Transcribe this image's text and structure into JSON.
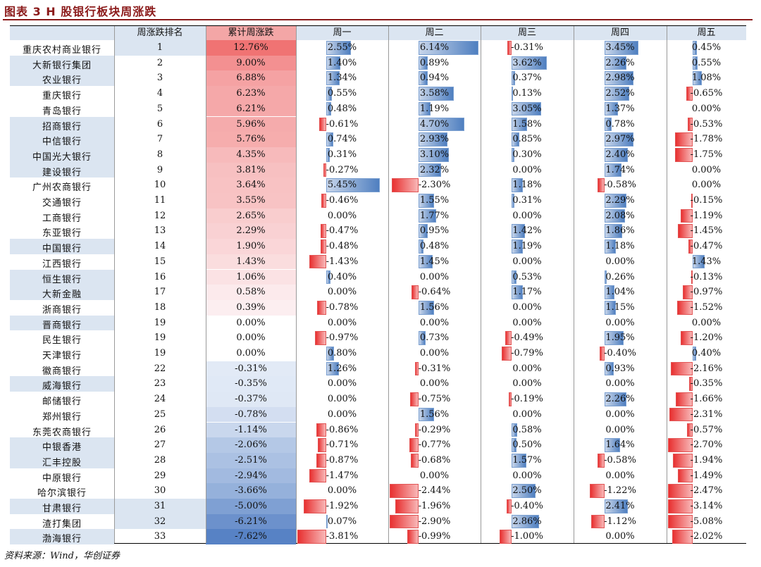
{
  "figure_title": "图表 3   H 股银行板块周涨跌",
  "source": "资料来源：Wind，华创证券",
  "chart_data": {
    "type": "table",
    "columns": [
      "",
      "周涨跌排名",
      "累计周涨跌",
      "周一",
      "周二",
      "周三",
      "周四",
      "周五"
    ],
    "rows": [
      {
        "name": "重庆农村商业银行",
        "rank": "1",
        "cum": "12.76%",
        "d": [
          "2.55%",
          "6.14%",
          "-0.31%",
          "3.45%",
          "0.45%"
        ]
      },
      {
        "name": "大新银行集团",
        "rank": "2",
        "cum": "9.00%",
        "d": [
          "1.40%",
          "0.89%",
          "3.62%",
          "2.26%",
          "0.55%"
        ]
      },
      {
        "name": "农业银行",
        "rank": "3",
        "cum": "6.88%",
        "d": [
          "1.34%",
          "0.94%",
          "0.37%",
          "2.98%",
          "1.08%"
        ]
      },
      {
        "name": "重庆银行",
        "rank": "4",
        "cum": "6.23%",
        "d": [
          "0.55%",
          "3.58%",
          "0.13%",
          "2.52%",
          "-0.65%"
        ]
      },
      {
        "name": "青岛银行",
        "rank": "5",
        "cum": "6.21%",
        "d": [
          "0.48%",
          "1.19%",
          "3.05%",
          "1.37%",
          "0.00%"
        ]
      },
      {
        "name": "招商银行",
        "rank": "6",
        "cum": "5.96%",
        "d": [
          "-0.61%",
          "4.70%",
          "1.58%",
          "0.78%",
          "-0.53%"
        ]
      },
      {
        "name": "中信银行",
        "rank": "7",
        "cum": "5.76%",
        "d": [
          "0.74%",
          "2.93%",
          "0.85%",
          "2.97%",
          "-1.78%"
        ]
      },
      {
        "name": "中国光大银行",
        "rank": "8",
        "cum": "4.35%",
        "d": [
          "0.31%",
          "3.10%",
          "0.30%",
          "2.40%",
          "-1.75%"
        ]
      },
      {
        "name": "建设银行",
        "rank": "9",
        "cum": "3.81%",
        "d": [
          "-0.27%",
          "2.32%",
          "0.00%",
          "1.74%",
          "0.00%"
        ]
      },
      {
        "name": "广州农商银行",
        "rank": "10",
        "cum": "3.64%",
        "d": [
          "5.45%",
          "-2.30%",
          "1.18%",
          "-0.58%",
          "0.00%"
        ]
      },
      {
        "name": "交通银行",
        "rank": "11",
        "cum": "3.55%",
        "d": [
          "-0.46%",
          "1.55%",
          "0.31%",
          "2.29%",
          "-0.15%"
        ]
      },
      {
        "name": "工商银行",
        "rank": "12",
        "cum": "2.65%",
        "d": [
          "0.00%",
          "1.77%",
          "0.00%",
          "2.08%",
          "-1.19%"
        ]
      },
      {
        "name": "东亚银行",
        "rank": "13",
        "cum": "2.29%",
        "d": [
          "-0.47%",
          "0.95%",
          "1.42%",
          "1.86%",
          "-1.45%"
        ]
      },
      {
        "name": "中国银行",
        "rank": "14",
        "cum": "1.90%",
        "d": [
          "-0.48%",
          "0.48%",
          "1.19%",
          "1.18%",
          "-0.47%"
        ]
      },
      {
        "name": "江西银行",
        "rank": "15",
        "cum": "1.43%",
        "d": [
          "-1.43%",
          "1.45%",
          "0.00%",
          "0.00%",
          "1.43%"
        ]
      },
      {
        "name": "恒生银行",
        "rank": "16",
        "cum": "1.06%",
        "d": [
          "0.40%",
          "0.00%",
          "0.53%",
          "0.26%",
          "-0.13%"
        ]
      },
      {
        "name": "大新金融",
        "rank": "17",
        "cum": "0.58%",
        "d": [
          "0.00%",
          "-0.64%",
          "1.17%",
          "1.04%",
          "-0.97%"
        ]
      },
      {
        "name": "浙商银行",
        "rank": "18",
        "cum": "0.39%",
        "d": [
          "-0.78%",
          "1.56%",
          "0.00%",
          "1.15%",
          "-1.52%"
        ]
      },
      {
        "name": "晋商银行",
        "rank": "19",
        "cum": "0.00%",
        "d": [
          "0.00%",
          "0.00%",
          "0.00%",
          "0.00%",
          "0.00%"
        ]
      },
      {
        "name": "民生银行",
        "rank": "19",
        "cum": "0.00%",
        "d": [
          "-0.97%",
          "0.73%",
          "-0.49%",
          "1.95%",
          "-1.20%"
        ]
      },
      {
        "name": "天津银行",
        "rank": "19",
        "cum": "0.00%",
        "d": [
          "0.80%",
          "0.00%",
          "-0.79%",
          "-0.40%",
          "0.40%"
        ]
      },
      {
        "name": "徽商银行",
        "rank": "22",
        "cum": "-0.31%",
        "d": [
          "1.26%",
          "-0.31%",
          "0.00%",
          "0.93%",
          "-2.16%"
        ]
      },
      {
        "name": "威海银行",
        "rank": "23",
        "cum": "-0.35%",
        "d": [
          "0.00%",
          "0.00%",
          "0.00%",
          "0.00%",
          "-0.35%"
        ]
      },
      {
        "name": "邮储银行",
        "rank": "24",
        "cum": "-0.37%",
        "d": [
          "0.00%",
          "-0.75%",
          "-0.19%",
          "2.26%",
          "-1.66%"
        ]
      },
      {
        "name": "郑州银行",
        "rank": "25",
        "cum": "-0.78%",
        "d": [
          "0.00%",
          "1.56%",
          "0.00%",
          "0.00%",
          "-2.31%"
        ]
      },
      {
        "name": "东莞农商银行",
        "rank": "26",
        "cum": "-1.14%",
        "d": [
          "-0.86%",
          "-0.29%",
          "0.58%",
          "0.00%",
          "-0.57%"
        ]
      },
      {
        "name": "中银香港",
        "rank": "27",
        "cum": "-2.06%",
        "d": [
          "-0.71%",
          "-0.77%",
          "0.50%",
          "1.64%",
          "-2.70%"
        ]
      },
      {
        "name": "汇丰控股",
        "rank": "28",
        "cum": "-2.51%",
        "d": [
          "-0.87%",
          "-0.68%",
          "1.57%",
          "-0.58%",
          "-1.94%"
        ]
      },
      {
        "name": "中原银行",
        "rank": "29",
        "cum": "-2.94%",
        "d": [
          "-1.47%",
          "0.00%",
          "0.00%",
          "0.00%",
          "-1.49%"
        ]
      },
      {
        "name": "哈尔滨银行",
        "rank": "30",
        "cum": "-3.66%",
        "d": [
          "0.00%",
          "-2.44%",
          "2.50%",
          "-1.22%",
          "-2.47%"
        ]
      },
      {
        "name": "甘肃银行",
        "rank": "31",
        "cum": "-5.00%",
        "d": [
          "-1.92%",
          "-1.96%",
          "-0.40%",
          "2.41%",
          "-3.14%"
        ]
      },
      {
        "name": "渣打集团",
        "rank": "32",
        "cum": "-6.21%",
        "d": [
          "0.07%",
          "-2.90%",
          "2.86%",
          "-1.12%",
          "-5.08%"
        ]
      },
      {
        "name": "渤海银行",
        "rank": "33",
        "cum": "-7.62%",
        "d": [
          "-3.81%",
          "-0.99%",
          "-1.00%",
          "0.00%",
          "-2.02%"
        ]
      }
    ]
  }
}
